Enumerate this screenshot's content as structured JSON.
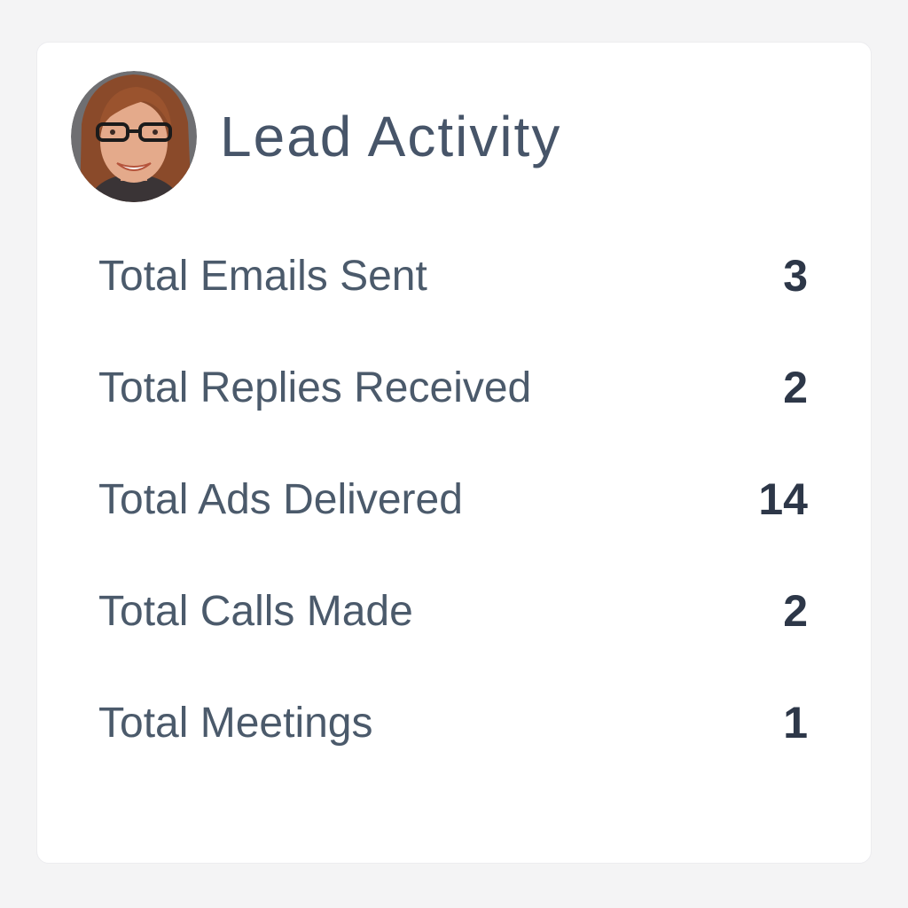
{
  "card": {
    "title": "Lead Activity",
    "avatar": {
      "icon": "person-avatar"
    },
    "stats": [
      {
        "label": "Total Emails Sent",
        "value": "3"
      },
      {
        "label": "Total Replies Received",
        "value": "2"
      },
      {
        "label": "Total Ads Delivered",
        "value": "14"
      },
      {
        "label": "Total Calls Made",
        "value": "2"
      },
      {
        "label": "Total Meetings",
        "value": "1"
      }
    ]
  },
  "colors": {
    "page_background": "#f4f4f5",
    "card_background": "#ffffff",
    "title_text": "#475569",
    "label_text": "#4b5a6b",
    "value_text": "#2d3748"
  }
}
